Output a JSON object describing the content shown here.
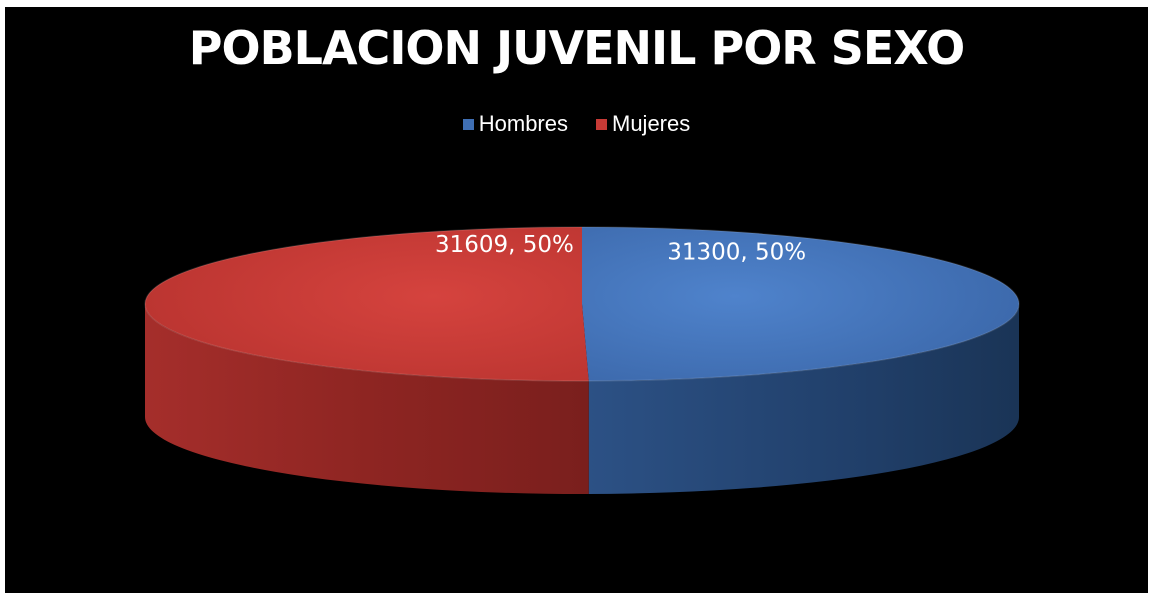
{
  "chart_data": {
    "type": "pie",
    "title": "POBLACION JUVENIL POR SEXO",
    "legend_position": "top",
    "style": "3d",
    "series": [
      {
        "name": "Hombres",
        "value": 31300,
        "percent_label": "50%",
        "data_label": "31300, 50%",
        "color": "#3f6fb4"
      },
      {
        "name": "Mujeres",
        "value": 31609,
        "percent_label": "50%",
        "data_label": "31609, 50%",
        "color": "#c73a36"
      }
    ]
  }
}
